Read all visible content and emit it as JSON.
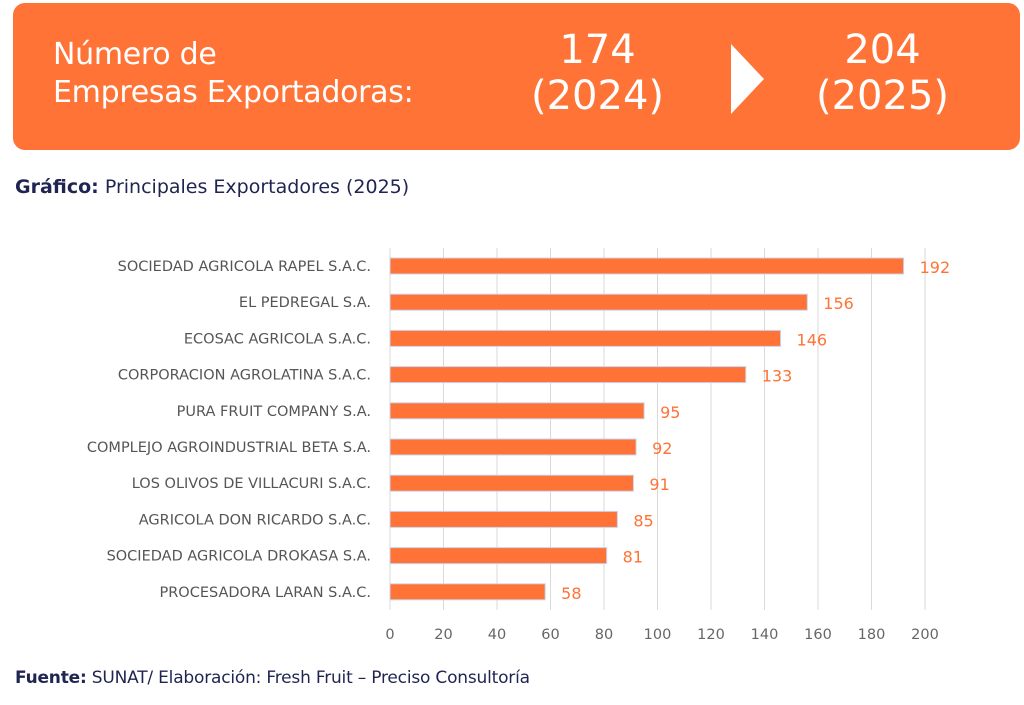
{
  "banner": {
    "title_line1": "Número de",
    "title_line2": "Empresas Exportadoras:",
    "value_2024": "174",
    "year_2024": "(2024)",
    "value_2025": "204",
    "year_2025": "(2025)",
    "arrow_icon": "triangle-right-icon"
  },
  "heading": {
    "bold": "Gráfico:",
    "text": " Principales Exportadores (2025)"
  },
  "footer": {
    "bold": "Fuente:",
    "text": " SUNAT/ Elaboración: Fresh Fruit – Preciso Consultoría"
  },
  "colors": {
    "accent": "#ff7336",
    "bar_outline": "#c9d4ee",
    "grid": "#d9d9d9",
    "heading_text": "#1f2451"
  },
  "chart_data": {
    "type": "bar",
    "orientation": "horizontal",
    "title": "Principales Exportadores (2025)",
    "xlabel": "",
    "ylabel": "",
    "xlim": [
      0,
      200
    ],
    "xticks": [
      0,
      20,
      40,
      60,
      80,
      100,
      120,
      140,
      160,
      180,
      200
    ],
    "grid": true,
    "categories": [
      "SOCIEDAD AGRICOLA RAPEL S.A.C.",
      "EL PEDREGAL S.A.",
      "ECOSAC AGRICOLA S.A.C.",
      "CORPORACION AGROLATINA S.A.C.",
      "PURA FRUIT COMPANY S.A.",
      "COMPLEJO AGROINDUSTRIAL BETA S.A.",
      "LOS OLIVOS DE VILLACURI S.A.C.",
      "AGRICOLA DON RICARDO S.A.C.",
      "SOCIEDAD AGRICOLA DROKASA S.A.",
      "PROCESADORA LARAN S.A.C."
    ],
    "values": [
      192,
      156,
      146,
      133,
      95,
      92,
      91,
      85,
      81,
      58
    ]
  }
}
